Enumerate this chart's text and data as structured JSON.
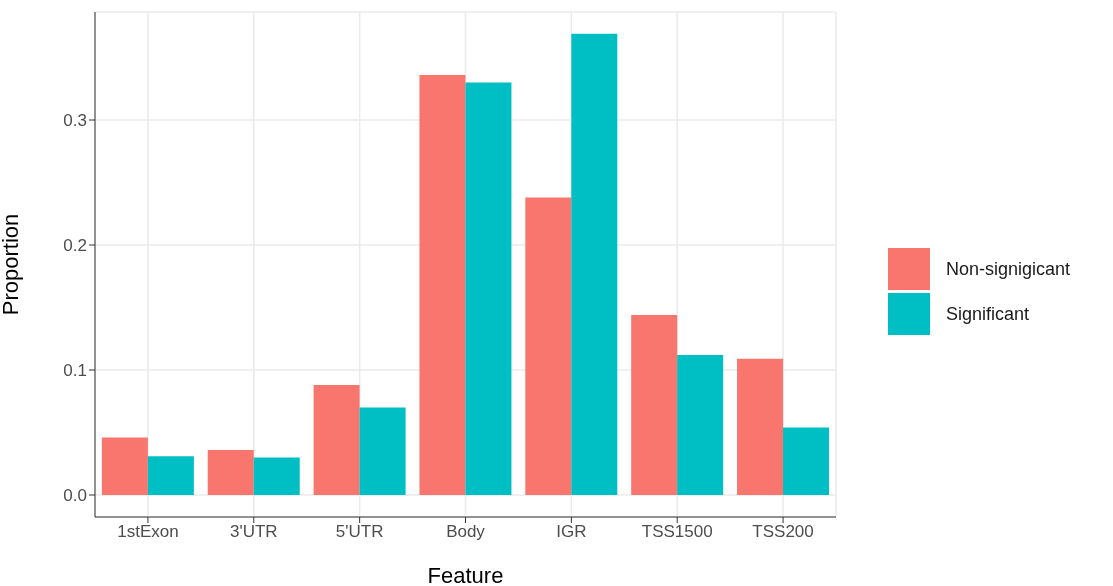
{
  "chart_data": {
    "type": "bar",
    "xlabel": "Feature",
    "ylabel": "Proportion",
    "categories": [
      "1stExon",
      "3'UTR",
      "5'UTR",
      "Body",
      "IGR",
      "TSS1500",
      "TSS200"
    ],
    "series": [
      {
        "name": "Non-signigicant",
        "color": "#f8766d",
        "values": [
          0.046,
          0.036,
          0.088,
          0.336,
          0.238,
          0.144,
          0.109
        ]
      },
      {
        "name": "Significant",
        "color": "#00bfc4",
        "values": [
          0.031,
          0.03,
          0.07,
          0.33,
          0.369,
          0.112,
          0.054
        ]
      }
    ],
    "ylim": [
      -0.0176,
      0.3864
    ],
    "yticks": [
      {
        "value": 0,
        "label": "0.0"
      },
      {
        "value": 0.1,
        "label": "0.1"
      },
      {
        "value": 0.2,
        "label": "0.2"
      },
      {
        "value": 0.3,
        "label": "0.3"
      }
    ],
    "grid": true,
    "legend": "right"
  }
}
